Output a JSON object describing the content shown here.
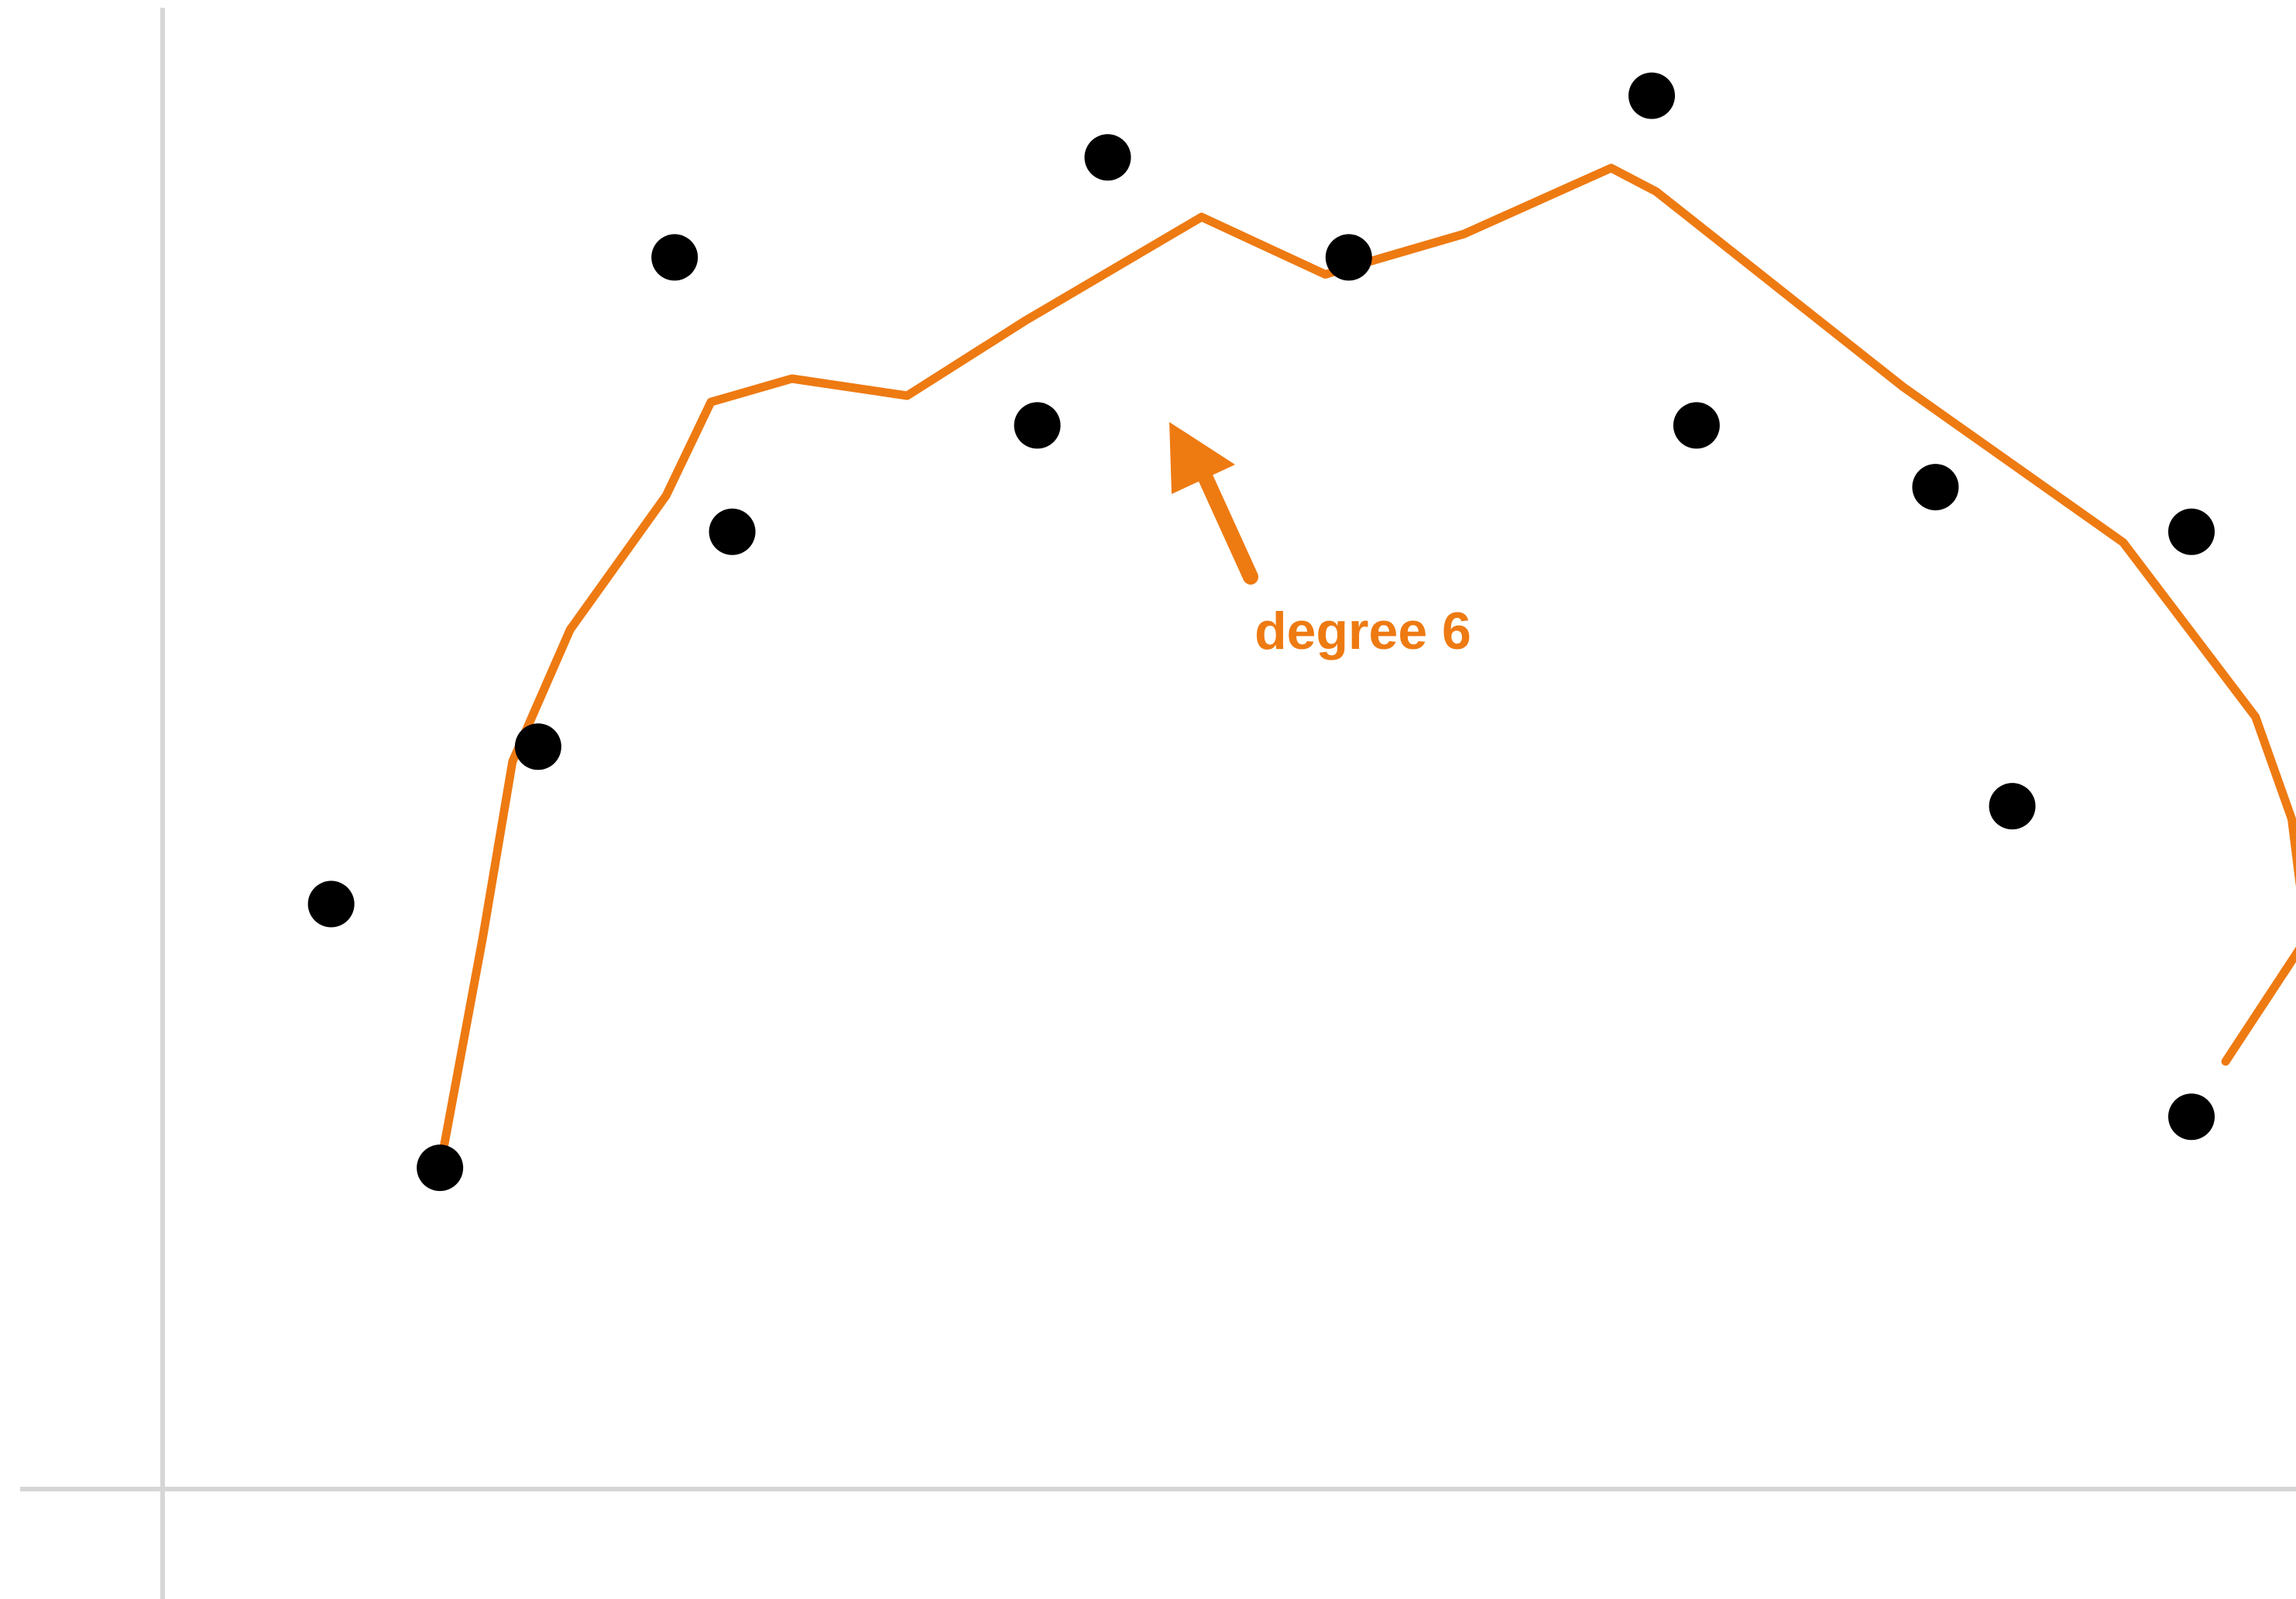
{
  "chart_data": {
    "type": "scatter",
    "xlim": [
      0,
      10
    ],
    "ylim": [
      0,
      7
    ],
    "series": [
      {
        "color": "#000000",
        "x": [
          0.79,
          1.3,
          1.76,
          2.4,
          2.67,
          4.1,
          4.43,
          5.56,
          6.98,
          7.19,
          8.31,
          8.67,
          9.51,
          9.51
        ],
        "values": [
          2.75,
          1.51,
          3.49,
          5.79,
          4.5,
          5.0,
          6.26,
          5.79,
          6.55,
          5.0,
          4.71,
          3.21,
          4.5,
          1.75
        ]
      }
    ],
    "fit": {
      "color": "#ee7a12",
      "x": [
        1.3,
        1.5,
        1.64,
        1.91,
        2.36,
        2.57,
        2.95,
        3.49,
        4.04,
        4.87,
        5.45,
        6.1,
        6.79,
        7.0,
        8.16,
        9.19,
        9.81,
        9.98,
        10.05,
        9.67
      ],
      "values": [
        1.51,
        2.59,
        3.42,
        4.04,
        4.67,
        5.11,
        5.22,
        5.14,
        5.49,
        5.98,
        5.71,
        5.9,
        6.21,
        6.1,
        5.18,
        4.45,
        3.63,
        3.15,
        2.59,
        2.01
      ]
    },
    "annotation": "degree 6"
  }
}
